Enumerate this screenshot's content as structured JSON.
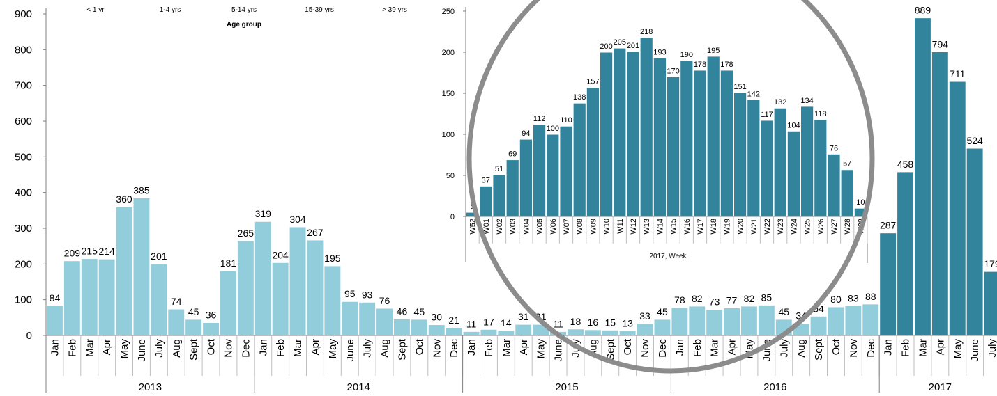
{
  "chart_data": [
    {
      "type": "bar",
      "ylim": [
        0,
        900
      ],
      "yticks": [
        "0",
        "100",
        "200",
        "300",
        "400",
        "500",
        "600",
        "700",
        "800",
        "900"
      ],
      "years": [
        "2013",
        "2014",
        "2015",
        "2016",
        "2017"
      ],
      "categories": [
        "Jan",
        "Feb",
        "Mar",
        "Apr",
        "May",
        "June",
        "July",
        "Aug",
        "Sept",
        "Oct",
        "Nov",
        "Dec",
        "Jan",
        "Feb",
        "Mar",
        "Apr",
        "May",
        "June",
        "July",
        "Aug",
        "Sept",
        "Oct",
        "Nov",
        "Dec",
        "Jan",
        "Feb",
        "Mar",
        "Apr",
        "May",
        "June",
        "July",
        "Aug",
        "Sept",
        "Oct",
        "Nov",
        "Dec",
        "Jan",
        "Feb",
        "Mar",
        "Apr",
        "May",
        "June",
        "July",
        "Aug",
        "Sept",
        "Oct",
        "Nov",
        "Dec",
        "Jan",
        "Feb",
        "Mar",
        "Apr",
        "May",
        "June",
        "July"
      ],
      "values": [
        84,
        209,
        215,
        214,
        360,
        385,
        201,
        74,
        45,
        36,
        181,
        265,
        319,
        204,
        304,
        267,
        195,
        95,
        93,
        76,
        46,
        45,
        30,
        21,
        11,
        17,
        14,
        31,
        31,
        11,
        18,
        16,
        15,
        13,
        33,
        45,
        78,
        82,
        73,
        77,
        82,
        85,
        45,
        34,
        54,
        80,
        83,
        88,
        287,
        458,
        889,
        794,
        711,
        524,
        179
      ],
      "colors": {
        "past": "#92cddc",
        "current": "#31849b"
      }
    },
    {
      "type": "bar",
      "xlabel": "2017, Week",
      "ylim": [
        0,
        250
      ],
      "yticks": [
        "0",
        "50",
        "100",
        "150",
        "200",
        "250"
      ],
      "categories": [
        "W52",
        "W01",
        "W02",
        "W03",
        "W04",
        "W05",
        "W06",
        "W07",
        "W08",
        "W09",
        "W10",
        "W11",
        "W12",
        "W13",
        "W14",
        "W15",
        "W16",
        "W17",
        "W18",
        "W19",
        "W20",
        "W21",
        "W22",
        "W23",
        "W24",
        "W25",
        "W26",
        "W27",
        "W28",
        "W29"
      ],
      "values": [
        5,
        37,
        51,
        69,
        94,
        112,
        100,
        110,
        138,
        157,
        200,
        205,
        201,
        218,
        193,
        170,
        190,
        178,
        195,
        178,
        151,
        142,
        117,
        132,
        104,
        134,
        118,
        76,
        57,
        10
      ],
      "color": "#31849b"
    }
  ],
  "age_group": {
    "title": "Age group",
    "labels": [
      "< 1 yr",
      "1-4 yrs",
      "5-14 yrs",
      "15-39 yrs",
      "> 39 yrs"
    ]
  }
}
